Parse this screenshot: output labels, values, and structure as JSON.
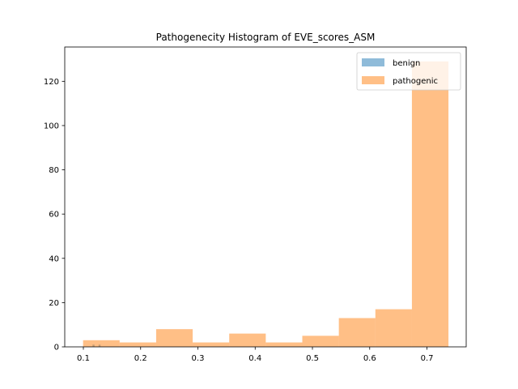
{
  "chart_data": {
    "type": "bar",
    "title": "Pathogenecity Histogram of EVE_scores_ASM",
    "xlabel": "",
    "ylabel": "",
    "xlim": [
      0.0675,
      0.7685
    ],
    "ylim": [
      0,
      135.5
    ],
    "xticks": [
      0.1,
      0.2,
      0.3,
      0.4,
      0.5,
      0.6,
      0.7
    ],
    "xtick_labels": [
      "0.1",
      "0.2",
      "0.3",
      "0.4",
      "0.5",
      "0.6",
      "0.7"
    ],
    "yticks": [
      0,
      20,
      40,
      60,
      80,
      100,
      120
    ],
    "ytick_labels": [
      "0",
      "20",
      "40",
      "60",
      "80",
      "100",
      "120"
    ],
    "grid": false,
    "legend_position": "top-right",
    "series": [
      {
        "name": "benign",
        "color": "#1f77b4",
        "opacity": 0.5,
        "bins": [
          {
            "x0": 0.116,
            "x1": 0.1195,
            "count": 1
          },
          {
            "x0": 0.1265,
            "x1": 0.13,
            "count": 1
          }
        ]
      },
      {
        "name": "pathogenic",
        "color": "#ff7f0e",
        "opacity": 0.5,
        "bins": [
          {
            "x0": 0.0995,
            "x1": 0.1633,
            "count": 3
          },
          {
            "x0": 0.1633,
            "x1": 0.2271,
            "count": 2
          },
          {
            "x0": 0.2271,
            "x1": 0.2909,
            "count": 8
          },
          {
            "x0": 0.2909,
            "x1": 0.3547,
            "count": 2
          },
          {
            "x0": 0.3547,
            "x1": 0.4185,
            "count": 6
          },
          {
            "x0": 0.4185,
            "x1": 0.4823,
            "count": 2
          },
          {
            "x0": 0.4823,
            "x1": 0.5461,
            "count": 5
          },
          {
            "x0": 0.5461,
            "x1": 0.6099,
            "count": 13
          },
          {
            "x0": 0.6099,
            "x1": 0.6737,
            "count": 17
          },
          {
            "x0": 0.6737,
            "x1": 0.7375,
            "count": 129
          }
        ]
      }
    ]
  }
}
